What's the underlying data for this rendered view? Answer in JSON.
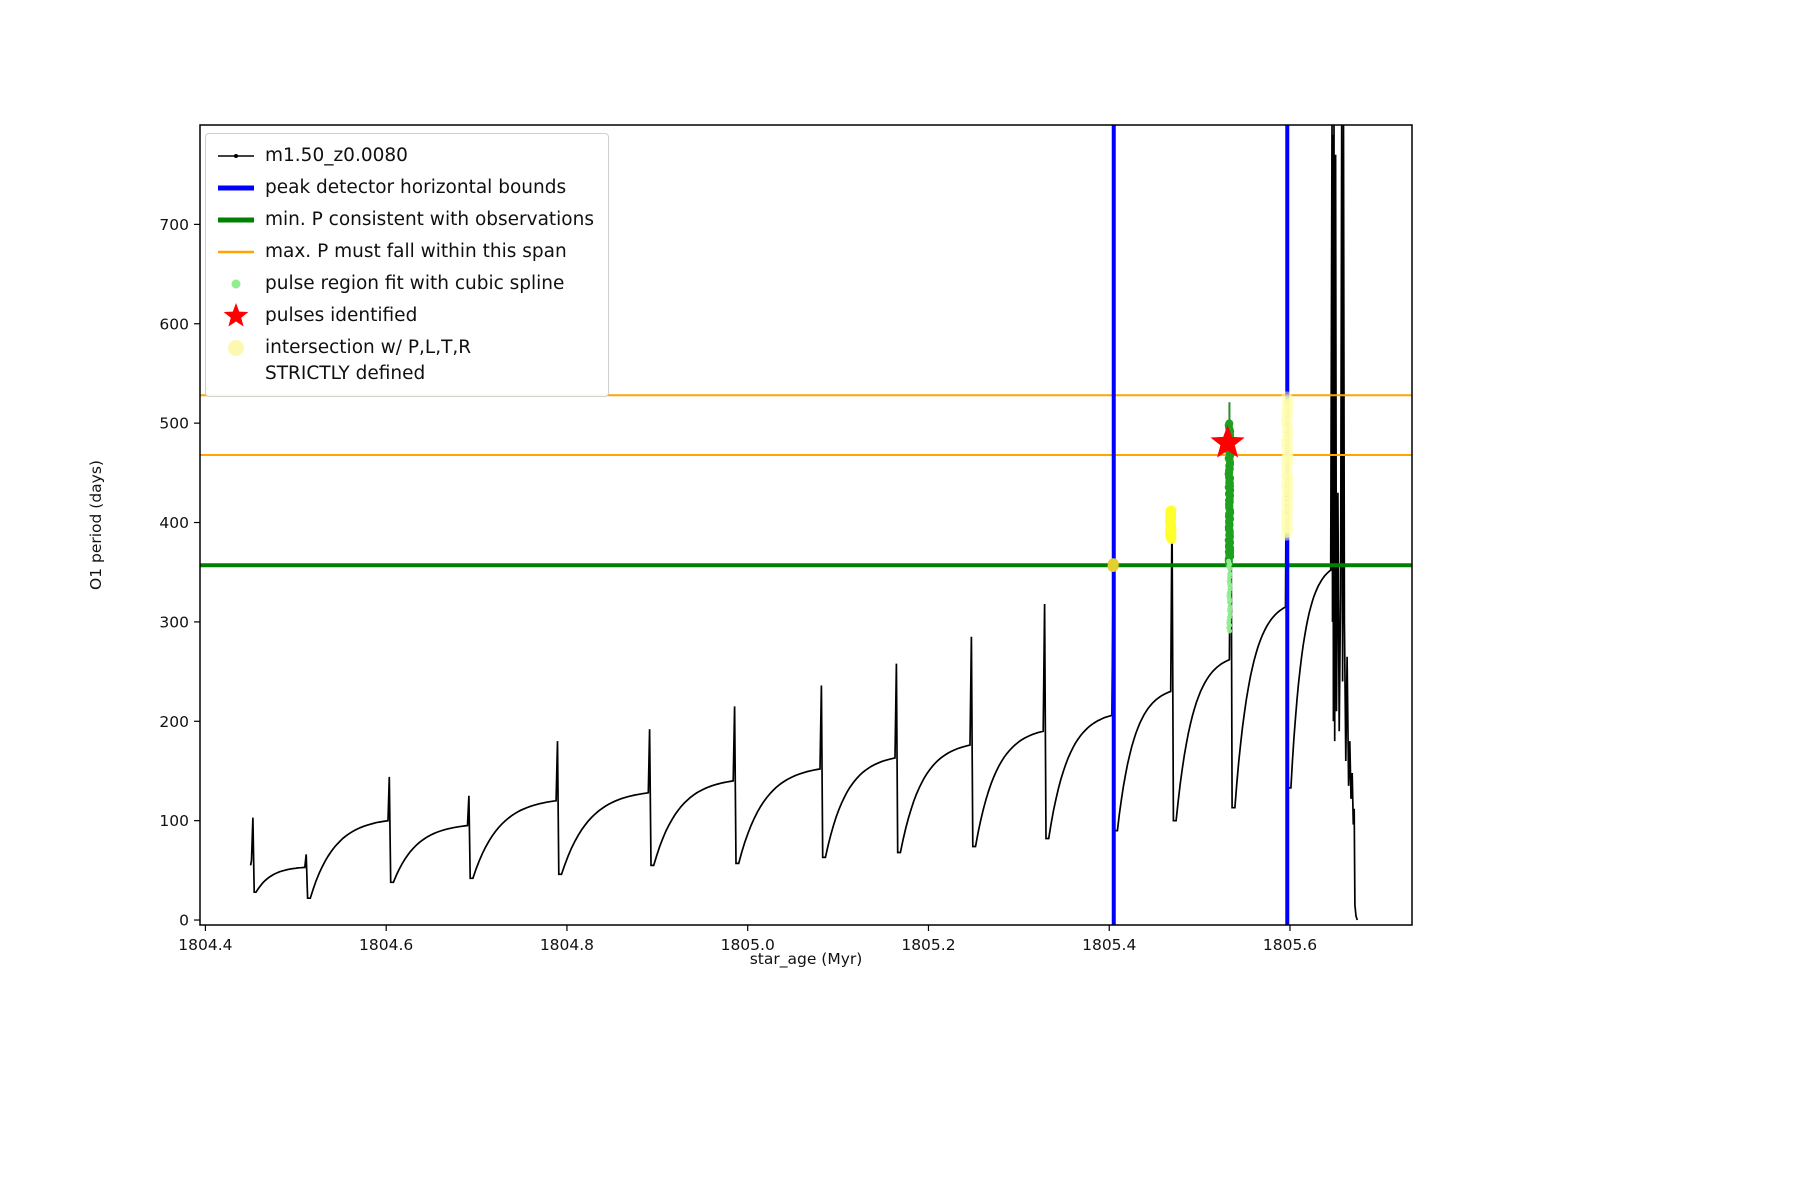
{
  "figure": {
    "background": "#ffffff"
  },
  "chart_data": {
    "type": "line",
    "title": "",
    "xlabel": "star_age (Myr)",
    "ylabel": "O1 period (days)",
    "xlim": [
      1804.394,
      1805.735
    ],
    "ylim": [
      -5,
      800
    ],
    "xticks": [
      1804.4,
      1804.6,
      1804.8,
      1805.0,
      1805.2,
      1805.4,
      1805.6
    ],
    "yticks": [
      0,
      100,
      200,
      300,
      400,
      500,
      600,
      700
    ],
    "grid": false,
    "legend": {
      "position": "upper-left",
      "items": [
        {
          "label": "m1.50_z0.0080",
          "type": "line-dot",
          "color": "#000000"
        },
        {
          "label": "peak detector horizontal bounds",
          "type": "line",
          "color": "#0000ff"
        },
        {
          "label": "min. P consistent with observations",
          "type": "line",
          "color": "#008000"
        },
        {
          "label": "max. P must fall within this span",
          "type": "line",
          "color": "#ffa500"
        },
        {
          "label": "pulse region fit with cubic spline",
          "type": "dot",
          "color": "#90ee90"
        },
        {
          "label": "pulses identified",
          "type": "star",
          "color": "#ff0000"
        },
        {
          "label": "intersection w/ P,L,T,R\nSTRICTLY defined",
          "type": "dot",
          "color": "#fbf7a8"
        }
      ]
    },
    "main_series": {
      "name": "m1.50_z0.0080",
      "color": "#000000",
      "cycles": [
        {
          "t0": 1804.45,
          "pmin": 55,
          "t1": 1804.451,
          "pplat": 60,
          "pk": 103
        },
        {
          "t0": 1804.456,
          "pmin": 28,
          "t1": 1804.51,
          "pplat": 53,
          "pk": 66
        },
        {
          "t0": 1804.516,
          "pmin": 22,
          "t1": 1804.602,
          "pplat": 100,
          "pk": 144
        },
        {
          "t0": 1804.608,
          "pmin": 38,
          "t1": 1804.69,
          "pplat": 95,
          "pk": 125
        },
        {
          "t0": 1804.696,
          "pmin": 42,
          "t1": 1804.788,
          "pplat": 120,
          "pk": 180
        },
        {
          "t0": 1804.794,
          "pmin": 46,
          "t1": 1804.89,
          "pplat": 128,
          "pk": 192
        },
        {
          "t0": 1804.896,
          "pmin": 55,
          "t1": 1804.984,
          "pplat": 140,
          "pk": 215
        },
        {
          "t0": 1804.99,
          "pmin": 57,
          "t1": 1805.08,
          "pplat": 152,
          "pk": 236
        },
        {
          "t0": 1805.086,
          "pmin": 63,
          "t1": 1805.163,
          "pplat": 163,
          "pk": 258
        },
        {
          "t0": 1805.169,
          "pmin": 68,
          "t1": 1805.246,
          "pplat": 176,
          "pk": 285
        },
        {
          "t0": 1805.252,
          "pmin": 74,
          "t1": 1805.327,
          "pplat": 190,
          "pk": 318
        },
        {
          "t0": 1805.333,
          "pmin": 82,
          "t1": 1805.403,
          "pplat": 206,
          "pk": 360
        },
        {
          "t0": 1805.409,
          "pmin": 90,
          "t1": 1805.468,
          "pplat": 230,
          "pk": 412
        },
        {
          "t0": 1805.474,
          "pmin": 100,
          "t1": 1805.533,
          "pplat": 262,
          "pk": 500
        },
        {
          "t0": 1805.539,
          "pmin": 113,
          "t1": 1805.595,
          "pplat": 315,
          "pk": 570
        },
        {
          "t0": 1805.601,
          "pmin": 133,
          "t1": 1805.645,
          "pplat": 352,
          "pk": 800
        }
      ],
      "tail": [
        [
          1805.647,
          300
        ],
        [
          1805.6475,
          790
        ],
        [
          1805.648,
          200
        ],
        [
          1805.6487,
          800
        ],
        [
          1805.6495,
          180
        ],
        [
          1805.6505,
          770
        ],
        [
          1805.6515,
          210
        ],
        [
          1805.653,
          430
        ],
        [
          1805.6545,
          190
        ],
        [
          1805.656,
          330
        ],
        [
          1805.6572,
          800
        ],
        [
          1805.6582,
          240
        ],
        [
          1805.6592,
          800
        ],
        [
          1805.6602,
          300
        ],
        [
          1805.6618,
          160
        ],
        [
          1805.6632,
          265
        ],
        [
          1805.6648,
          135
        ],
        [
          1805.6662,
          180
        ],
        [
          1805.6675,
          122
        ],
        [
          1805.6688,
          148
        ],
        [
          1805.67,
          96
        ],
        [
          1805.671,
          112
        ],
        [
          1805.6718,
          15
        ],
        [
          1805.673,
          4
        ],
        [
          1805.6745,
          0
        ]
      ]
    },
    "peak_detector_bounds": {
      "color": "#0000ff",
      "x": [
        1805.405,
        1805.597
      ],
      "linewidth": 4
    },
    "min_p_line": {
      "color": "#008000",
      "y": 357,
      "linewidth": 4
    },
    "max_p_span": {
      "color": "#ffa500",
      "y": [
        468,
        528
      ],
      "linewidth": 2
    },
    "spline_fit": {
      "line": {
        "x": 1805.533,
        "ymin": 295,
        "ymax": 521,
        "color": "#2e8b2e",
        "width": 2
      },
      "clusters": [
        {
          "x": 1805.533,
          "ymin": 358,
          "ymax": 500,
          "count": 85,
          "size": 8,
          "color": "#1fa11f",
          "alpha": 1
        },
        {
          "x": 1805.533,
          "ymin": 290,
          "ymax": 362,
          "count": 26,
          "size": 5,
          "color": "#90ee90",
          "alpha": 0.95
        }
      ]
    },
    "pulses_identified": {
      "color": "#ff0000",
      "points": [
        {
          "x": 1805.531,
          "y": 480
        }
      ],
      "size": 18
    },
    "intersections": {
      "clusters": [
        {
          "x": 1805.405,
          "ymin": 355,
          "ymax": 359,
          "count": 2,
          "size": 11,
          "color": "#e3cf2f",
          "alpha": 1
        },
        {
          "x": 1805.468,
          "ymin": 383,
          "ymax": 413,
          "count": 28,
          "size": 10,
          "color": "#ffff2e",
          "alpha": 0.95
        },
        {
          "x": 1805.597,
          "ymin": 386,
          "ymax": 527,
          "count": 70,
          "size": 11,
          "color": "#ffffb0",
          "alpha": 0.5
        }
      ]
    }
  }
}
